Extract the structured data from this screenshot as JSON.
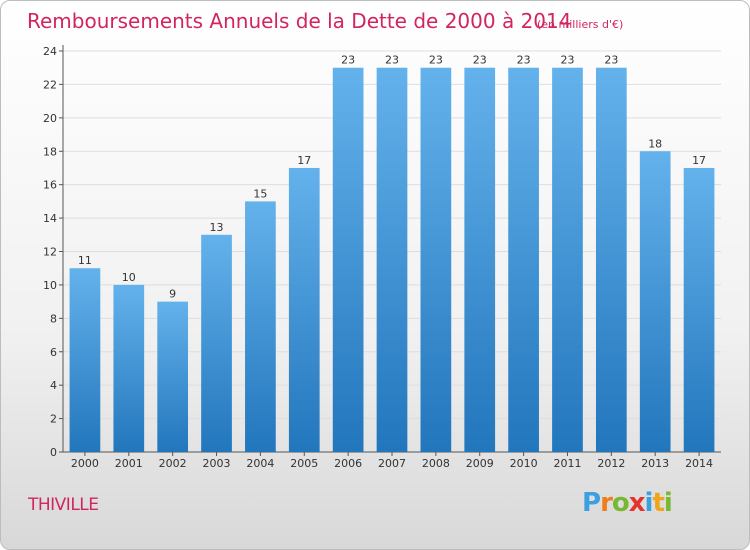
{
  "chart_data": {
    "type": "bar",
    "title": "Remboursements Annuels de la Dette de 2000 à 2014",
    "unit": "(en milliers d'€)",
    "categories": [
      "2000",
      "2001",
      "2002",
      "2003",
      "2004",
      "2005",
      "2006",
      "2007",
      "2008",
      "2009",
      "2010",
      "2011",
      "2012",
      "2013",
      "2014"
    ],
    "values": [
      11,
      10,
      9,
      13,
      15,
      17,
      23,
      23,
      23,
      23,
      23,
      23,
      23,
      18,
      17
    ],
    "yticks": [
      0,
      2,
      4,
      6,
      8,
      10,
      12,
      14,
      16,
      18,
      20,
      22,
      24
    ],
    "ylim": [
      0,
      24
    ],
    "grid": "horizontal",
    "bar_color": "#3a8fd6"
  },
  "location": "THIVILLE",
  "logo": {
    "text": "Proxiti",
    "letters": [
      "P",
      "r",
      "o",
      "x",
      "i",
      "t",
      "i"
    ],
    "colors": [
      "#3aa0e0",
      "#f07d1a",
      "#78b833",
      "#e5322d",
      "#3aa0e0",
      "#f0a51a",
      "#78b833"
    ]
  }
}
